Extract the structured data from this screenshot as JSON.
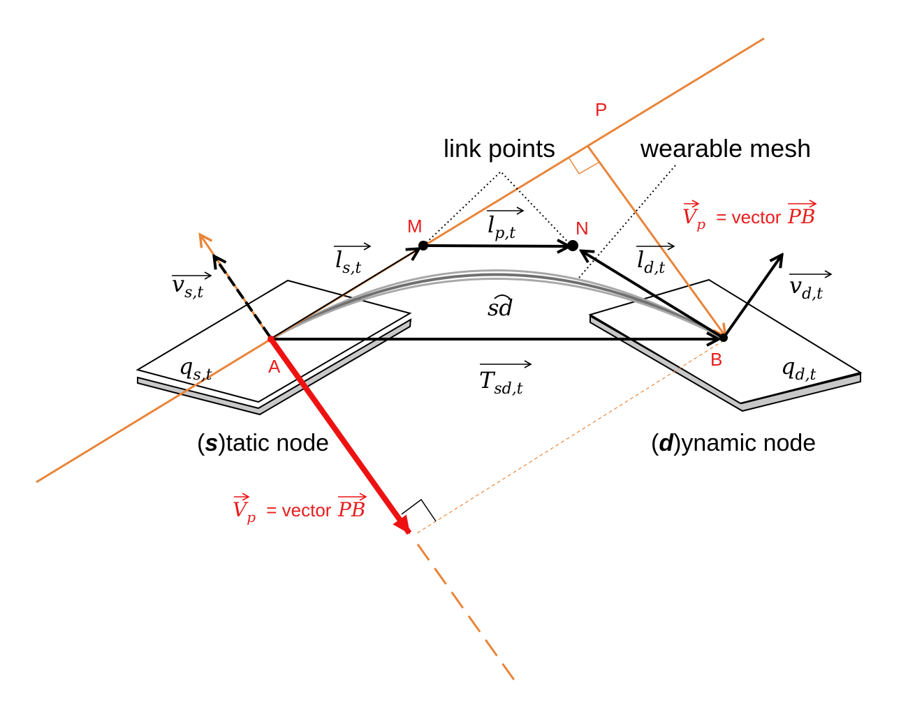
{
  "labels": {
    "point_p": "P",
    "point_m": "M",
    "point_n": "N",
    "point_a": "A",
    "point_b": "B",
    "link_points": "link points",
    "wearable_mesh": "wearable mesh",
    "static_open": "(",
    "static_s": "s",
    "static_rest": ")tatic node",
    "dynamic_open": "(",
    "dynamic_d": "d",
    "dynamic_rest": ")ynamic node",
    "vp_var": "V",
    "vp_sub": "p",
    "vp_eq": " = vector ",
    "vp_pb": "PB"
  },
  "math": {
    "v_s_t": {
      "base": "v",
      "sub": "s,t"
    },
    "v_d_t": {
      "base": "v",
      "sub": "d,t"
    },
    "l_s_t": {
      "base": "l",
      "sub": "s,t"
    },
    "l_p_t": {
      "base": "l",
      "sub": "p,t"
    },
    "l_d_t": {
      "base": "l",
      "sub": "d,t"
    },
    "q_s_t": {
      "base": "q",
      "sub": "s,t"
    },
    "q_d_t": {
      "base": "q",
      "sub": "d,t"
    },
    "t_sd_t": {
      "base": "T",
      "sub": "sd,t"
    },
    "arc_sd": "sd"
  },
  "colors": {
    "orange": "#E8843A",
    "red": "#EE1111",
    "black": "#000000",
    "gray": "#8a8a8a",
    "label_red": "#E81C1C"
  }
}
